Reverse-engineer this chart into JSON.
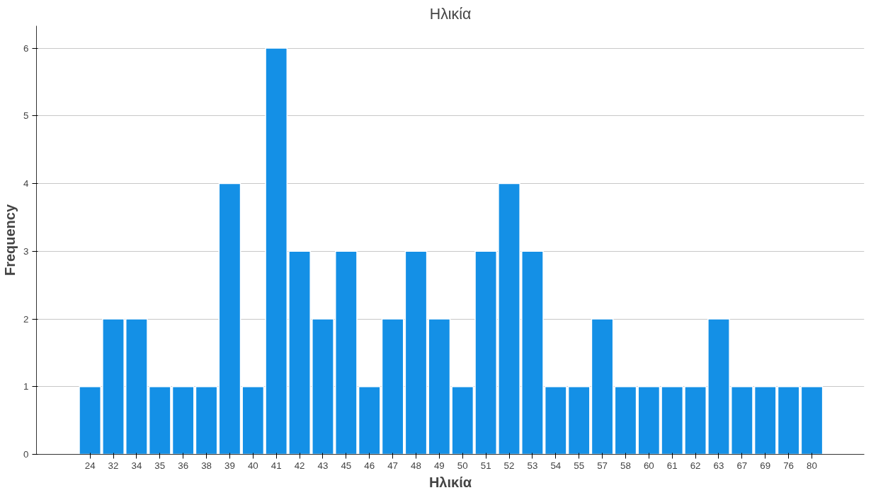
{
  "chart_data": {
    "type": "bar",
    "title": "Ηλικία",
    "xlabel": "Ηλικία",
    "ylabel": "Frequency",
    "categories": [
      "24",
      "32",
      "34",
      "35",
      "36",
      "38",
      "39",
      "40",
      "41",
      "42",
      "43",
      "45",
      "46",
      "47",
      "48",
      "49",
      "50",
      "51",
      "52",
      "53",
      "54",
      "55",
      "57",
      "58",
      "60",
      "61",
      "62",
      "63",
      "67",
      "69",
      "76",
      "80"
    ],
    "values": [
      1,
      2,
      2,
      1,
      1,
      1,
      4,
      1,
      6,
      3,
      2,
      3,
      1,
      2,
      3,
      2,
      1,
      3,
      4,
      3,
      1,
      1,
      2,
      1,
      1,
      1,
      1,
      2,
      1,
      1,
      1,
      1
    ],
    "color": "#1490e6",
    "ylim": [
      0,
      6.33
    ],
    "yticks": [
      0,
      1,
      2,
      3,
      4,
      5,
      6
    ],
    "grid": "y"
  }
}
